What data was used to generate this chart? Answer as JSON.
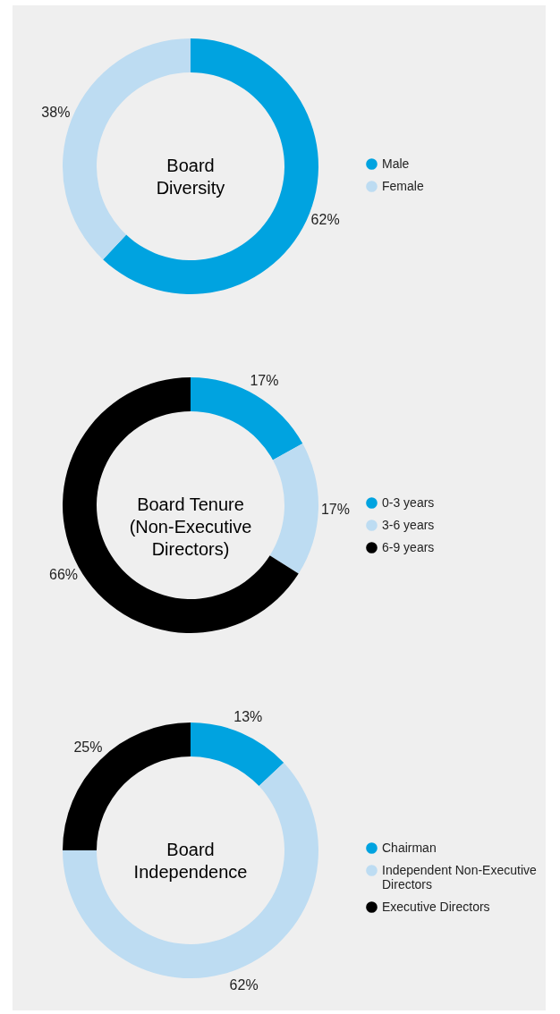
{
  "chart_data": [
    {
      "type": "donut",
      "title": "Board Diversity",
      "categories": [
        "Male",
        "Female"
      ],
      "values": [
        62,
        38
      ],
      "value_labels": [
        "62%",
        "38%"
      ],
      "colors": [
        "#00a3e0",
        "#bddcf2"
      ],
      "legend": "right"
    },
    {
      "type": "donut",
      "title": "Board Tenure (Non-Executive Directors)",
      "categories": [
        "0-3 years",
        "3-6 years",
        "6-9 years"
      ],
      "values": [
        17,
        17,
        66
      ],
      "value_labels": [
        "17%",
        "17%",
        "66%"
      ],
      "colors": [
        "#00a3e0",
        "#bddcf2",
        "#000000"
      ],
      "legend": "right"
    },
    {
      "type": "donut",
      "title": "Board Independence",
      "categories": [
        "Chairman",
        "Independent Non-Executive Directors",
        "Executive Directors"
      ],
      "values": [
        13,
        62,
        25
      ],
      "value_labels": [
        "13%",
        "62%",
        "25%"
      ],
      "colors": [
        "#00a3e0",
        "#bddcf2",
        "#000000"
      ],
      "legend": "right"
    }
  ]
}
